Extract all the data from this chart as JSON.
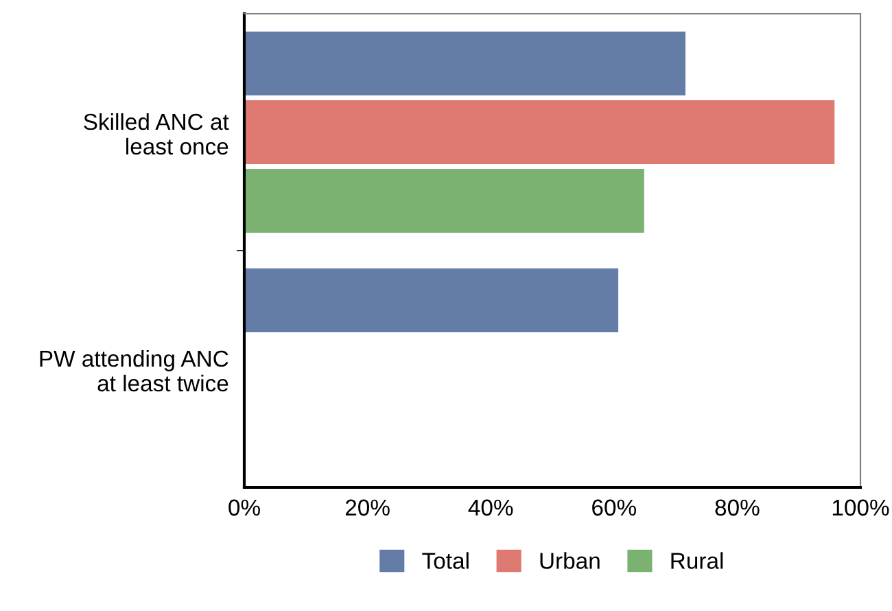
{
  "chart_data": {
    "type": "bar",
    "orientation": "horizontal",
    "categories": [
      "Skilled ANC at\nleast once",
      "PW attending ANC\nat least twice"
    ],
    "series": [
      {
        "name": "Total",
        "color": "#637da6",
        "values": [
          71.6,
          60.7
        ]
      },
      {
        "name": "Urban",
        "color": "#de7a72",
        "values": [
          95.8,
          null
        ]
      },
      {
        "name": "Rural",
        "color": "#7bb171",
        "values": [
          64.9,
          null
        ]
      }
    ],
    "xlim": [
      0,
      100
    ],
    "xticks": [
      {
        "value": 0,
        "label": "0%"
      },
      {
        "value": 20,
        "label": "20%"
      },
      {
        "value": 40,
        "label": "40%"
      },
      {
        "value": 60,
        "label": "60%"
      },
      {
        "value": 80,
        "label": "80%"
      },
      {
        "value": 100,
        "label": "100%"
      }
    ],
    "grid": false,
    "legend": "bottom"
  }
}
